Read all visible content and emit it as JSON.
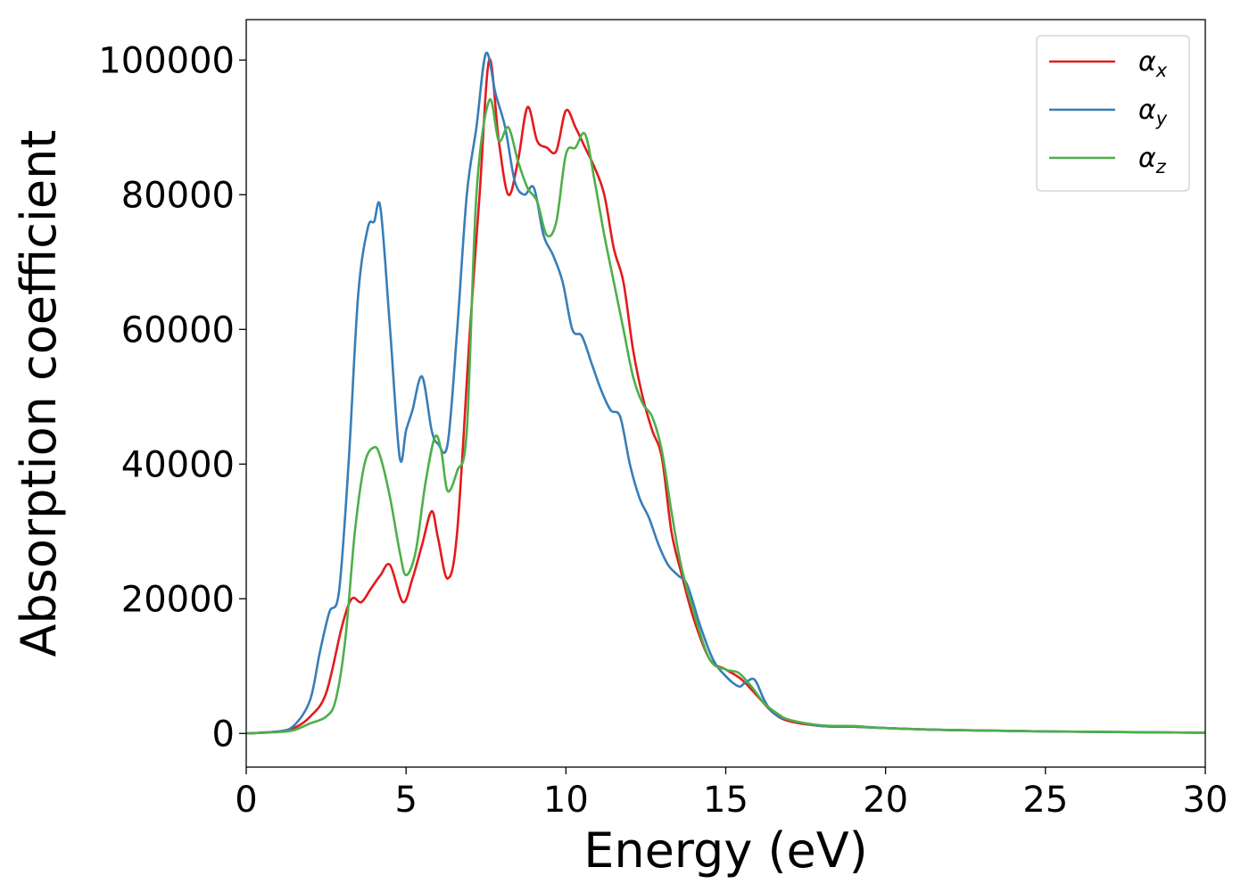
{
  "chart_data": {
    "type": "line",
    "xlabel": "Energy (eV)",
    "ylabel": "Absorption coefficient",
    "xlim": [
      0,
      30
    ],
    "ylim": [
      -5000,
      106000
    ],
    "xticks": [
      0,
      5,
      10,
      15,
      20,
      25,
      30
    ],
    "yticks": [
      0,
      20000,
      40000,
      60000,
      80000,
      100000
    ],
    "grid": false,
    "legend_position": "top-right",
    "series": [
      {
        "name": "αx",
        "base": "α",
        "sub": "x",
        "color": "#e41a1c",
        "x": [
          0,
          1,
          1.5,
          2,
          2.5,
          3,
          3.3,
          3.6,
          3.9,
          4.2,
          4.5,
          4.9,
          5.2,
          5.5,
          5.8,
          6.0,
          6.3,
          6.6,
          7.0,
          7.3,
          7.6,
          7.9,
          8.2,
          8.5,
          8.8,
          9.1,
          9.4,
          9.7,
          10.0,
          10.3,
          10.6,
          10.9,
          11.2,
          11.5,
          11.8,
          12.1,
          12.4,
          12.7,
          13.0,
          13.3,
          13.6,
          14.0,
          14.5,
          15.0,
          15.5,
          16.0,
          16.5,
          17.0,
          18.0,
          19.0,
          20.0,
          22.0,
          25.0,
          30.0
        ],
        "y": [
          0,
          300,
          800,
          2500,
          6000,
          16000,
          20000,
          19500,
          21500,
          23500,
          25000,
          19500,
          23000,
          28000,
          33000,
          29000,
          23000,
          30000,
          60000,
          80000,
          100000,
          88000,
          80000,
          85000,
          93000,
          88000,
          87000,
          86500,
          92500,
          90000,
          87000,
          84000,
          80000,
          72000,
          67000,
          57000,
          50000,
          45000,
          41000,
          30000,
          24000,
          17000,
          11000,
          9500,
          8000,
          5500,
          3000,
          1800,
          1100,
          1000,
          800,
          500,
          300,
          100
        ]
      },
      {
        "name": "αy",
        "base": "α",
        "sub": "y",
        "color": "#377eb8",
        "x": [
          0,
          1,
          1.5,
          2,
          2.3,
          2.6,
          2.9,
          3.2,
          3.5,
          3.8,
          4.0,
          4.2,
          4.5,
          4.8,
          5.0,
          5.2,
          5.5,
          5.8,
          6.0,
          6.3,
          6.6,
          6.9,
          7.2,
          7.5,
          7.8,
          8.1,
          8.4,
          8.7,
          9.0,
          9.3,
          9.6,
          9.9,
          10.2,
          10.5,
          10.8,
          11.1,
          11.4,
          11.7,
          12.0,
          12.3,
          12.6,
          12.9,
          13.2,
          13.5,
          13.8,
          14.2,
          14.6,
          15.0,
          15.4,
          15.6,
          15.9,
          16.2,
          16.5,
          17.0,
          18.0,
          19.0,
          20.0,
          22.0,
          25.0,
          30.0
        ],
        "y": [
          0,
          300,
          1200,
          5000,
          12000,
          18000,
          21000,
          40000,
          65000,
          75000,
          76000,
          78000,
          60000,
          41000,
          45000,
          48000,
          53000,
          45000,
          43000,
          43000,
          60000,
          80000,
          90000,
          101000,
          95000,
          90000,
          82000,
          80000,
          81000,
          74000,
          71000,
          67000,
          60000,
          59000,
          55000,
          51000,
          48000,
          47000,
          40000,
          35000,
          32000,
          28000,
          25000,
          23500,
          22000,
          16000,
          11000,
          8500,
          7000,
          7500,
          8000,
          5000,
          3000,
          2000,
          1100,
          1000,
          800,
          500,
          300,
          100
        ]
      },
      {
        "name": "αz",
        "base": "α",
        "sub": "z",
        "color": "#4daf4a",
        "x": [
          0,
          1,
          1.5,
          2,
          2.5,
          2.8,
          3.1,
          3.4,
          3.7,
          4.0,
          4.2,
          4.5,
          4.8,
          5.0,
          5.3,
          5.6,
          5.9,
          6.1,
          6.3,
          6.6,
          6.9,
          7.2,
          7.6,
          7.9,
          8.2,
          8.5,
          8.8,
          9.1,
          9.4,
          9.7,
          10.0,
          10.3,
          10.6,
          10.9,
          11.2,
          11.5,
          11.8,
          12.1,
          12.4,
          12.7,
          13.0,
          13.3,
          13.6,
          14.0,
          14.5,
          15.0,
          15.4,
          15.8,
          16.2,
          16.6,
          17.0,
          18.0,
          19.0,
          20.0,
          22.0,
          25.0,
          30.0
        ],
        "y": [
          0,
          200,
          500,
          1500,
          2500,
          5000,
          14000,
          30000,
          40000,
          42500,
          41000,
          35000,
          27000,
          23500,
          27000,
          37000,
          44000,
          42000,
          36000,
          39000,
          45000,
          80000,
          94000,
          88000,
          90000,
          85000,
          81000,
          79000,
          74000,
          76000,
          86000,
          87000,
          89000,
          82000,
          74000,
          67000,
          60000,
          53000,
          49000,
          47000,
          42000,
          33000,
          25000,
          18000,
          11000,
          9500,
          9000,
          7000,
          4500,
          3000,
          2000,
          1200,
          1100,
          800,
          500,
          300,
          100
        ]
      }
    ]
  }
}
